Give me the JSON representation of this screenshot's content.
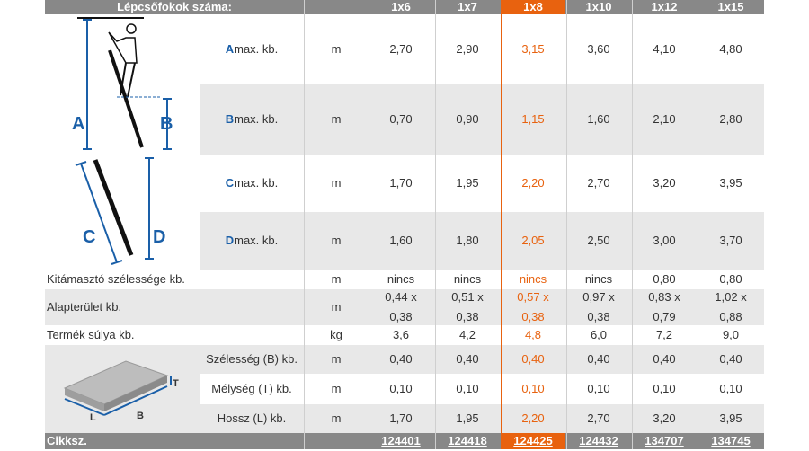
{
  "header": {
    "title": "Lépcsőfokok száma:",
    "columns": [
      "1x6",
      "1x7",
      "1x8",
      "1x10",
      "1x12",
      "1x15"
    ]
  },
  "highlight_column": "1x8",
  "diagram_labels": {
    "a": "A",
    "b": "B",
    "c": "C",
    "d": "D",
    "t": "T",
    "l": "L",
    "b2": "B"
  },
  "rows": {
    "a": {
      "letter": "A",
      "label": " max. kb.",
      "unit": "m",
      "values": [
        "2,70",
        "2,90",
        "3,15",
        "3,60",
        "4,10",
        "4,80"
      ]
    },
    "b": {
      "letter": "B",
      "label": " max. kb.",
      "unit": "m",
      "values": [
        "0,70",
        "0,90",
        "1,15",
        "1,60",
        "2,10",
        "2,80"
      ]
    },
    "c": {
      "letter": "C",
      "label": " max. kb.",
      "unit": "m",
      "values": [
        "1,70",
        "1,95",
        "2,20",
        "2,70",
        "3,20",
        "3,95"
      ]
    },
    "d": {
      "letter": "D",
      "label": " max. kb.",
      "unit": "m",
      "values": [
        "1,60",
        "1,80",
        "2,05",
        "2,50",
        "3,00",
        "3,70"
      ]
    },
    "kitamaszto": {
      "label": "Kitámasztó szélessége kb.",
      "unit": "m",
      "values": [
        "nincs",
        "nincs",
        "nincs",
        "nincs",
        "0,80",
        "0,80"
      ]
    },
    "alapterulet": {
      "label": "Alapterület kb.",
      "unit": "m",
      "values": [
        [
          "0,44 x",
          "0,38"
        ],
        [
          "0,51 x",
          "0,38"
        ],
        [
          "0,57 x",
          "0,38"
        ],
        [
          "0,97 x",
          "0,38"
        ],
        [
          "0,83 x",
          "0,79"
        ],
        [
          "1,02 x",
          "0,88"
        ]
      ]
    },
    "suly": {
      "label": "Termék súlya kb.",
      "unit": "kg",
      "values": [
        "3,6",
        "4,2",
        "4,8",
        "6,0",
        "7,2",
        "9,0"
      ]
    },
    "szelesseg": {
      "label": "Szélesség (B) kb.",
      "unit": "m",
      "values": [
        "0,40",
        "0,40",
        "0,40",
        "0,40",
        "0,40",
        "0,40"
      ]
    },
    "melyseg": {
      "label": "Mélység (T) kb.",
      "unit": "m",
      "values": [
        "0,10",
        "0,10",
        "0,10",
        "0,10",
        "0,10",
        "0,10"
      ]
    },
    "hossz": {
      "label": "Hossz (L) kb.",
      "unit": "m",
      "values": [
        "1,70",
        "1,95",
        "2,20",
        "2,70",
        "3,20",
        "3,95"
      ]
    }
  },
  "footer": {
    "label": "Cikksz.",
    "codes": [
      "124401",
      "124418",
      "124425",
      "124432",
      "134707",
      "134745"
    ]
  }
}
